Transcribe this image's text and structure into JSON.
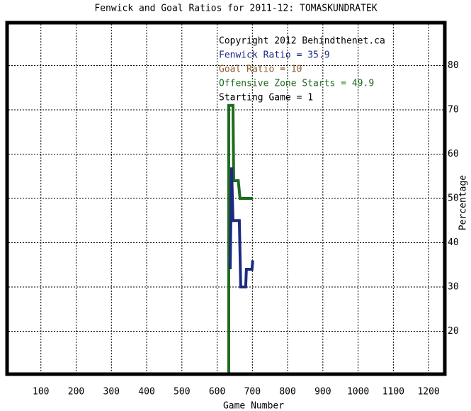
{
  "chart_data": {
    "type": "line",
    "title": "Fenwick and Goal Ratios for 2011-12: TOMASKUNDRATEK",
    "xlabel": "Game Number",
    "ylabel": "Percentage",
    "xlim": [
      0,
      1250
    ],
    "ylim": [
      10,
      90
    ],
    "xticks": [
      100,
      200,
      300,
      400,
      500,
      600,
      700,
      800,
      900,
      1000,
      1100,
      1200
    ],
    "yticks": [
      20,
      30,
      40,
      50,
      60,
      70,
      80
    ],
    "grid": true,
    "annotations": [
      {
        "text": "Copyright 2012 Behindthenet.ca",
        "color": "#000000"
      },
      {
        "text": "Fenwick Ratio = 35.9",
        "color": "#1c2a80"
      },
      {
        "text": "Goal Ratio = 10",
        "color": "#8b5a2b"
      },
      {
        "text": "Offensive Zone Starts = 49.9",
        "color": "#1e6b1e"
      },
      {
        "text": "Starting Game = 1",
        "color": "#000000"
      }
    ],
    "series": [
      {
        "color": "#1e6b1e",
        "x": [
          633,
          633,
          645,
          647,
          660,
          665,
          701
        ],
        "values": [
          10,
          71,
          71,
          54,
          54,
          50,
          50
        ]
      },
      {
        "color": "#1c2a80",
        "x": [
          637,
          641,
          645,
          663,
          667,
          681,
          683,
          699,
          701
        ],
        "values": [
          34,
          57,
          45,
          45,
          30,
          30,
          34,
          34,
          36
        ]
      }
    ]
  }
}
